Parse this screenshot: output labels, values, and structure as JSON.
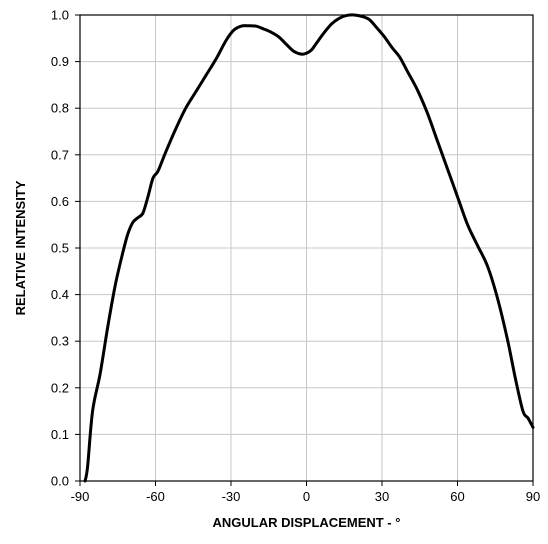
{
  "chart_data": {
    "type": "line",
    "title": "",
    "xlabel": "ANGULAR DISPLACEMENT - °",
    "ylabel": "RELATIVE INTENSITY",
    "xlim": [
      -90,
      90
    ],
    "ylim": [
      0,
      1.0
    ],
    "grid": true,
    "x_ticks": [
      "-90",
      "-60",
      "-30",
      "0",
      "30",
      "60",
      "90"
    ],
    "y_ticks": [
      "0.0",
      "0.1",
      "0.2",
      "0.3",
      "0.4",
      "0.5",
      "0.6",
      "0.7",
      "0.8",
      "0.9",
      "1.0"
    ],
    "line_color": "#000000",
    "grid_color": "#c8c8c8",
    "series": [
      {
        "name": "",
        "x": [
          -88,
          -87,
          -85,
          -82,
          -79,
          -76,
          -73,
          -71,
          -69,
          -67,
          -65,
          -63,
          -61,
          -59,
          -56,
          -52,
          -48,
          -44,
          -40,
          -36,
          -32,
          -29,
          -26,
          -23,
          -20,
          -17,
          -14,
          -11,
          -8,
          -5,
          -2,
          0,
          2,
          4,
          7,
          10,
          13,
          16,
          19,
          22,
          25,
          28,
          31,
          34,
          37,
          40,
          44,
          48,
          52,
          56,
          60,
          64,
          68,
          72,
          76,
          80,
          83,
          86,
          88,
          90
        ],
        "y": [
          0.0,
          0.03,
          0.15,
          0.23,
          0.33,
          0.42,
          0.49,
          0.53,
          0.555,
          0.565,
          0.575,
          0.61,
          0.65,
          0.665,
          0.705,
          0.755,
          0.8,
          0.835,
          0.87,
          0.905,
          0.945,
          0.967,
          0.976,
          0.977,
          0.976,
          0.97,
          0.963,
          0.953,
          0.937,
          0.922,
          0.916,
          0.918,
          0.925,
          0.94,
          0.962,
          0.981,
          0.993,
          0.999,
          1.0,
          0.997,
          0.99,
          0.972,
          0.953,
          0.93,
          0.91,
          0.88,
          0.84,
          0.79,
          0.73,
          0.67,
          0.61,
          0.55,
          0.505,
          0.46,
          0.39,
          0.3,
          0.22,
          0.15,
          0.135,
          0.115
        ]
      }
    ]
  }
}
